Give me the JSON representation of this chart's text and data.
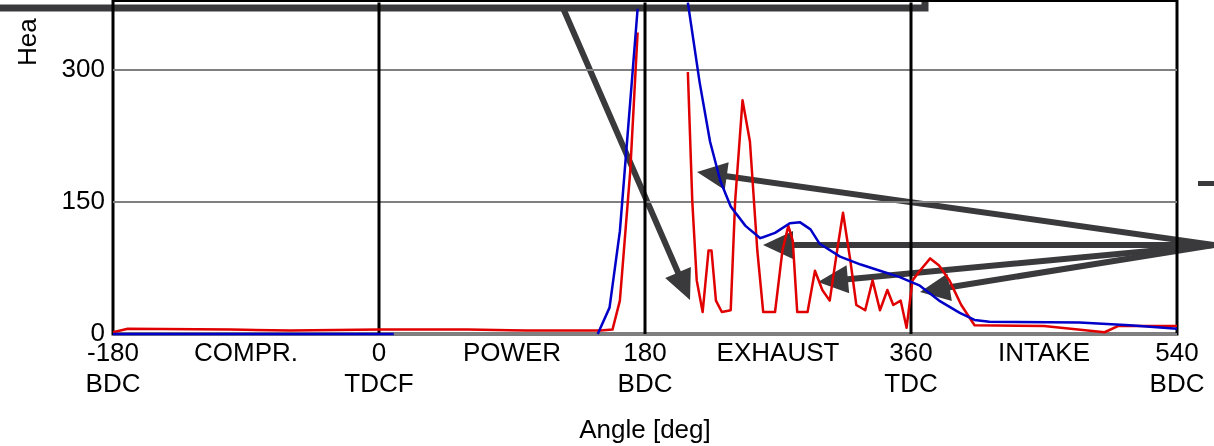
{
  "chart_data": {
    "type": "line",
    "xlabel": "Angle [deg]",
    "ylabel": "Hea",
    "xlim": [
      -180,
      540
    ],
    "ylim": [
      0,
      377
    ],
    "xticks": [
      {
        "value": -180,
        "label": "-180\nBDC"
      },
      {
        "value": -90,
        "label": "COMPR."
      },
      {
        "value": 0,
        "label": "0\nTDCF"
      },
      {
        "value": 90,
        "label": "POWER"
      },
      {
        "value": 180,
        "label": "180\nBDC"
      },
      {
        "value": 270,
        "label": "EXHAUST"
      },
      {
        "value": 360,
        "label": "360\nTDC"
      },
      {
        "value": 450,
        "label": "INTAKE"
      },
      {
        "value": 540,
        "label": "540\nBDC"
      }
    ],
    "yticks": [
      0,
      150,
      300
    ],
    "grid": "y",
    "legend": false,
    "marker": "none",
    "line_style": "solid",
    "ref_lines": [
      {
        "axis": "x",
        "value": 0,
        "color": "#000000"
      },
      {
        "axis": "x",
        "value": 180,
        "color": "#000000"
      },
      {
        "axis": "x",
        "value": 360,
        "color": "#000000"
      }
    ],
    "series": [
      {
        "color": "#e00000",
        "x": [
          -180,
          -170,
          -100,
          -60,
          0,
          60,
          100,
          150,
          158,
          163,
          170,
          175,
          176,
          208,
          209,
          212,
          215,
          219,
          223,
          225,
          228,
          232,
          238,
          241,
          246,
          251,
          256,
          260,
          268,
          273,
          277,
          280,
          283,
          290,
          295,
          300,
          305,
          310,
          314,
          319,
          323,
          329,
          334,
          339,
          344,
          348,
          353,
          357,
          361,
          366,
          373,
          379,
          386,
          394,
          403,
          450,
          491,
          500,
          540
        ],
        "values": [
          2,
          6,
          5,
          4,
          5,
          5,
          4,
          4,
          5,
          38,
          185,
          343,
          null,
          null,
          298,
          151,
          61,
          25,
          95,
          95,
          38,
          25,
          27,
          151,
          266,
          219,
          95,
          25,
          25,
          95,
          123,
          106,
          25,
          25,
          72,
          50,
          38,
          95,
          138,
          83,
          33,
          27,
          61,
          27,
          50,
          33,
          38,
          7,
          61,
          72,
          86,
          78,
          61,
          33,
          10,
          9,
          2,
          9,
          9
        ]
      },
      {
        "color": "#0000c8",
        "x": [
          -180,
          -100,
          10,
          100,
          148,
          156,
          163,
          170,
          175,
          176,
          208,
          209,
          217,
          224,
          231,
          238,
          248,
          258,
          268,
          278,
          285,
          292,
          298,
          312,
          326,
          339,
          352,
          366,
          379,
          393,
          403,
          413,
          474,
          508,
          540
        ],
        "values": [
          0,
          0,
          0,
          null,
          0,
          30,
          117,
          264,
          370,
          null,
          null,
          377,
          286,
          219,
          174,
          145,
          123,
          109,
          115,
          126,
          127,
          119,
          103,
          88,
          79,
          72,
          65,
          55,
          38,
          24,
          16,
          14,
          13,
          10,
          6
        ]
      }
    ]
  }
}
